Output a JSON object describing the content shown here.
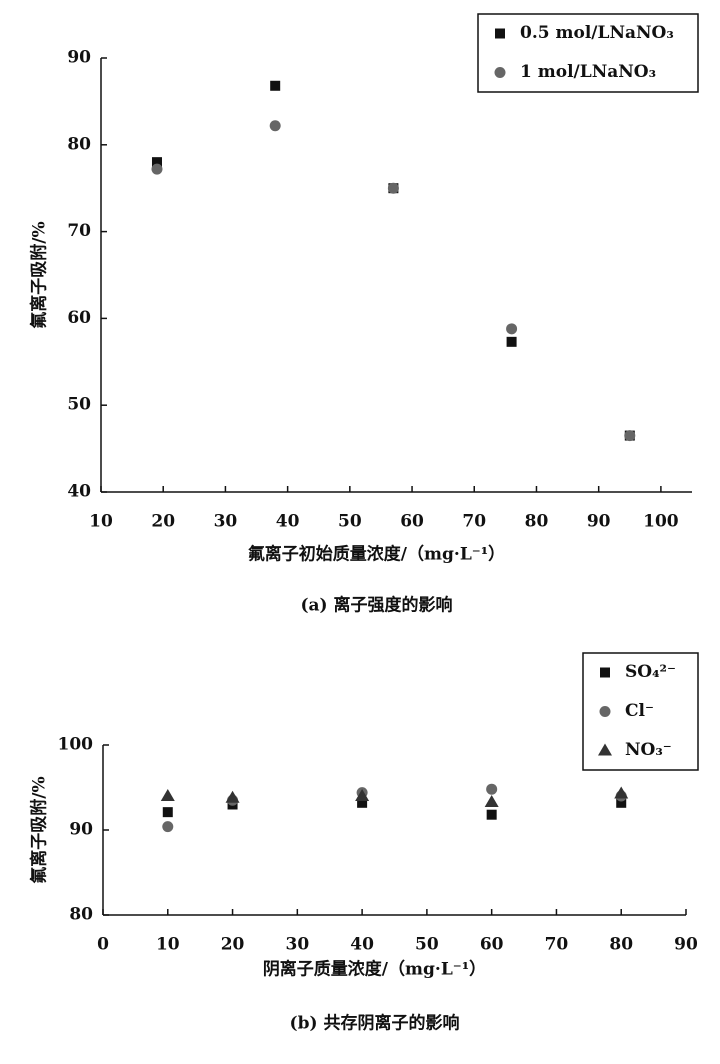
{
  "chart_data": [
    {
      "type": "scatter",
      "caption": "(a) 离子强度的影响",
      "x_label": "氟离子初始质量浓度/（mg·L⁻¹）",
      "y_label": "氟离子吸附/%",
      "xlim": [
        10,
        105
      ],
      "xticks": [
        10,
        20,
        30,
        40,
        50,
        60,
        70,
        80,
        90,
        100
      ],
      "ylim": [
        40,
        90
      ],
      "yticks": [
        40,
        50,
        60,
        70,
        80,
        90
      ],
      "legend": "upper right",
      "series": [
        {
          "name": "0.5 mol/LNaNO₃",
          "color": "#111111",
          "marker": "square",
          "x": [
            19,
            38,
            57,
            76,
            95
          ],
          "values": [
            78,
            86.8,
            75,
            57.3,
            46.5
          ]
        },
        {
          "name": "1 mol/LNaNO₃",
          "color": "#666666",
          "marker": "circle",
          "x": [
            19,
            38,
            57,
            76,
            95
          ],
          "values": [
            77.2,
            82.2,
            75,
            58.8,
            46.5
          ]
        }
      ]
    },
    {
      "type": "scatter",
      "caption": "(b) 共存阴离子的影响",
      "x_label": "阴离子质量浓度/（mg·L⁻¹）",
      "y_label": "氟离子吸附/%",
      "xlim": [
        0,
        90
      ],
      "xticks": [
        0,
        10,
        20,
        30,
        40,
        50,
        60,
        70,
        80,
        90
      ],
      "ylim": [
        80,
        100
      ],
      "yticks": [
        80,
        90,
        100
      ],
      "legend": "upper right",
      "series": [
        {
          "name": "SO₄²⁻",
          "color": "#111111",
          "marker": "square",
          "x": [
            10,
            20,
            40,
            60,
            80
          ],
          "values": [
            92.1,
            93,
            93.2,
            91.8,
            93.2
          ]
        },
        {
          "name": "Cl⁻",
          "color": "#666666",
          "marker": "circle",
          "x": [
            10,
            20,
            40,
            60,
            80
          ],
          "values": [
            90.4,
            93.5,
            94.4,
            94.8,
            94
          ]
        },
        {
          "name": "NO₃⁻",
          "color": "#333333",
          "marker": "triangle",
          "x": [
            10,
            20,
            40,
            60,
            80
          ],
          "values": [
            94,
            93.8,
            94,
            93.3,
            94.3
          ]
        }
      ]
    }
  ]
}
